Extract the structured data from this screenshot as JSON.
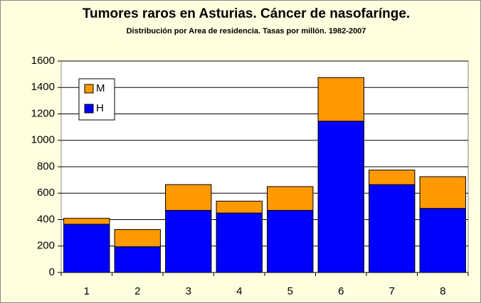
{
  "chart_data": {
    "type": "stacked_bar",
    "title": "Tumores raros en Asturias. Cáncer de nasofarínge.",
    "subtitle": "Distribución por Area de residencia. Tasas por millón. 1982-2007",
    "categories": [
      "1",
      "2",
      "3",
      "4",
      "5",
      "6",
      "7",
      "8"
    ],
    "series": [
      {
        "name": "H",
        "color": "#0000ff",
        "values": [
          365,
          195,
          470,
          450,
          470,
          1145,
          665,
          485
        ]
      },
      {
        "name": "M",
        "color": "#ff9900",
        "values": [
          45,
          130,
          195,
          90,
          180,
          330,
          110,
          240
        ]
      }
    ],
    "ylim": [
      0,
      1600
    ],
    "yticks": [
      0,
      200,
      400,
      600,
      800,
      1000,
      1200,
      1400,
      1600
    ],
    "grid": true,
    "legend": "top-left"
  }
}
